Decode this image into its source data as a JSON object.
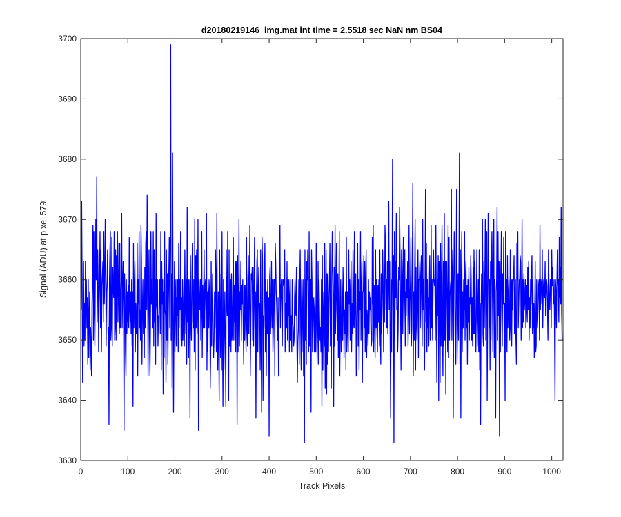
{
  "chart_data": {
    "type": "line",
    "title": "d20180219146_img.mat int time = 2.5518 sec  NaN nm BS04",
    "xlabel": "Track Pixels",
    "ylabel": "Signal (ADU) at pixel 579",
    "xlim": [
      0,
      1024
    ],
    "ylim": [
      3630,
      3700
    ],
    "x_ticks": [
      0,
      100,
      200,
      300,
      400,
      500,
      600,
      700,
      800,
      900,
      1000
    ],
    "y_ticks": [
      3630,
      3640,
      3650,
      3660,
      3670,
      3680,
      3690,
      3700
    ],
    "x_tick_labels": [
      "0",
      "100",
      "200",
      "300",
      "400",
      "500",
      "600",
      "700",
      "800",
      "900",
      "1000"
    ],
    "y_tick_labels": [
      "3630",
      "3640",
      "3650",
      "3660",
      "3670",
      "3680",
      "3690",
      "3700"
    ],
    "grid": false,
    "legend": "none",
    "series": [
      {
        "color": "#0000ff",
        "x_start": 1,
        "x_step": 1,
        "values": [
          3655,
          3673,
          3660,
          3643,
          3651,
          3663,
          3649,
          3656,
          3650,
          3663,
          3655,
          3660,
          3652,
          3657,
          3646,
          3660,
          3647,
          3654,
          3658,
          3645,
          3652,
          3649,
          3644,
          3656,
          3660,
          3669,
          3650,
          3668,
          3655,
          3649,
          3660,
          3670,
          3660,
          3677,
          3653,
          3665,
          3660,
          3648,
          3656,
          3660,
          3668,
          3652,
          3665,
          3648,
          3659,
          3661,
          3663,
          3653,
          3668,
          3656,
          3660,
          3670,
          3662,
          3649,
          3658,
          3660,
          3665,
          3651,
          3652,
          3636,
          3660,
          3665,
          3668,
          3650,
          3652,
          3667,
          3649,
          3662,
          3659,
          3657,
          3668,
          3650,
          3652,
          3665,
          3650,
          3664,
          3657,
          3668,
          3653,
          3658,
          3666,
          3651,
          3666,
          3652,
          3657,
          3660,
          3671,
          3652,
          3659,
          3663,
          3654,
          3635,
          3661,
          3657,
          3648,
          3644,
          3660,
          3651,
          3658,
          3653,
          3659,
          3652,
          3667,
          3655,
          3653,
          3658,
          3651,
          3660,
          3649,
          3658,
          3639,
          3666,
          3652,
          3658,
          3663,
          3648,
          3656,
          3651,
          3653,
          3666,
          3644,
          3660,
          3656,
          3668,
          3652,
          3655,
          3650,
          3669,
          3663,
          3646,
          3655,
          3660,
          3651,
          3656,
          3647,
          3662,
          3652,
          3666,
          3668,
          3655,
          3674,
          3660,
          3644,
          3658,
          3665,
          3650,
          3644,
          3652,
          3668,
          3656,
          3660,
          3653,
          3652,
          3668,
          3649,
          3665,
          3653,
          3660,
          3646,
          3671,
          3656,
          3655,
          3660,
          3649,
          3654,
          3652,
          3659,
          3660,
          3651,
          3668,
          3645,
          3663,
          3656,
          3660,
          3641,
          3658,
          3647,
          3668,
          3655,
          3654,
          3643,
          3665,
          3650,
          3661,
          3646,
          3655,
          3661,
          3667,
          3652,
          3669,
          3699,
          3650,
          3661,
          3642,
          3681,
          3657,
          3638,
          3652,
          3663,
          3648,
          3656,
          3660,
          3649,
          3657,
          3654,
          3660,
          3648,
          3666,
          3652,
          3660,
          3655,
          3668,
          3650,
          3657,
          3649,
          3660,
          3650,
          3654,
          3660,
          3649,
          3665,
          3656,
          3651,
          3660,
          3646,
          3672,
          3653,
          3660,
          3647,
          3660,
          3655,
          3637,
          3664,
          3653,
          3650,
          3660,
          3666,
          3653,
          3652,
          3660,
          3648,
          3670,
          3645,
          3664,
          3652,
          3665,
          3651,
          3656,
          3670,
          3635,
          3660,
          3656,
          3655,
          3660,
          3650,
          3655,
          3668,
          3647,
          3659,
          3652,
          3657,
          3665,
          3652,
          3659,
          3660,
          3655,
          3671,
          3645,
          3658,
          3648,
          3660,
          3652,
          3658,
          3660,
          3642,
          3648,
          3663,
          3649,
          3655,
          3661,
          3650,
          3647,
          3650,
          3658,
          3652,
          3665,
          3660,
          3648,
          3671,
          3652,
          3645,
          3658,
          3650,
          3640,
          3665,
          3654,
          3647,
          3661,
          3645,
          3668,
          3650,
          3639,
          3660,
          3645,
          3651,
          3658,
          3649,
          3639,
          3665,
          3656,
          3654,
          3668,
          3650,
          3640,
          3665,
          3649,
          3655,
          3660,
          3648,
          3661,
          3650,
          3652,
          3660,
          3667,
          3650,
          3659,
          3653,
          3663,
          3648,
          3663,
          3660,
          3636,
          3664,
          3648,
          3655,
          3670,
          3649,
          3658,
          3655,
          3663,
          3650,
          3659,
          3656,
          3660,
          3652,
          3646,
          3659,
          3650,
          3659,
          3655,
          3648,
          3667,
          3652,
          3649,
          3660,
          3664,
          3651,
          3658,
          3669,
          3644,
          3651,
          3661,
          3660,
          3662,
          3650,
          3662,
          3649,
          3657,
          3667,
          3652,
          3658,
          3637,
          3657,
          3663,
          3665,
          3648,
          3658,
          3662,
          3653,
          3656,
          3645,
          3665,
          3649,
          3638,
          3667,
          3663,
          3640,
          3654,
          3652,
          3660,
          3666,
          3648,
          3660,
          3644,
          3658,
          3651,
          3660,
          3649,
          3657,
          3634,
          3660,
          3662,
          3651,
          3655,
          3663,
          3652,
          3660,
          3648,
          3652,
          3660,
          3660,
          3644,
          3666,
          3663,
          3658,
          3656,
          3652,
          3650,
          3657,
          3644,
          3653,
          3660,
          3669,
          3652,
          3658,
          3660,
          3656,
          3649,
          3660,
          3660,
          3659,
          3660,
          3665,
          3648,
          3656,
          3652,
          3652,
          3663,
          3650,
          3660,
          3654,
          3660,
          3648,
          3657,
          3660,
          3650,
          3654,
          3648,
          3660,
          3653,
          3652,
          3649,
          3650,
          3657,
          3660,
          3655,
          3654,
          3662,
          3649,
          3643,
          3650,
          3652,
          3660,
          3646,
          3660,
          3665,
          3652,
          3645,
          3660,
          3648,
          3655,
          3660,
          3644,
          3650,
          3633,
          3665,
          3650,
          3660,
          3646,
          3663,
          3660,
          3665,
          3652,
          3648,
          3668,
          3649,
          3653,
          3660,
          3638,
          3665,
          3660,
          3648,
          3652,
          3657,
          3655,
          3648,
          3657,
          3650,
          3648,
          3666,
          3654,
          3646,
          3652,
          3663,
          3646,
          3660,
          3654,
          3650,
          3652,
          3648,
          3660,
          3639,
          3664,
          3645,
          3654,
          3658,
          3649,
          3666,
          3642,
          3654,
          3665,
          3641,
          3661,
          3646,
          3661,
          3648,
          3656,
          3660,
          3666,
          3649,
          3657,
          3642,
          3660,
          3668,
          3662,
          3657,
          3639,
          3662,
          3649,
          3669,
          3651,
          3657,
          3666,
          3655,
          3650,
          3661,
          3647,
          3656,
          3668,
          3644,
          3652,
          3660,
          3648,
          3649,
          3662,
          3650,
          3657,
          3662,
          3647,
          3655,
          3651,
          3658,
          3645,
          3667,
          3648,
          3658,
          3652,
          3648,
          3665,
          3656,
          3660,
          3650,
          3658,
          3663,
          3648,
          3656,
          3651,
          3665,
          3654,
          3652,
          3668,
          3652,
          3657,
          3661,
          3644,
          3650,
          3657,
          3666,
          3649,
          3660,
          3645,
          3658,
          3655,
          3668,
          3650,
          3658,
          3663,
          3643,
          3658,
          3658,
          3664,
          3652,
          3663,
          3648,
          3660,
          3665,
          3647,
          3655,
          3653,
          3649,
          3660,
          3651,
          3658,
          3655,
          3657,
          3652,
          3649,
          3650,
          3667,
          3656,
          3669,
          3648,
          3659,
          3655,
          3647,
          3665,
          3652,
          3660,
          3651,
          3648,
          3659,
          3653,
          3660,
          3649,
          3665,
          3652,
          3646,
          3661,
          3651,
          3656,
          3665,
          3660,
          3648,
          3657,
          3653,
          3669,
          3666,
          3655,
          3660,
          3652,
          3663,
          3651,
          3659,
          3673,
          3655,
          3663,
          3649,
          3637,
          3660,
          3648,
          3660,
          3680,
          3655,
          3664,
          3633,
          3668,
          3650,
          3663,
          3657,
          3671,
          3655,
          3660,
          3648,
          3652,
          3662,
          3660,
          3672,
          3664,
          3655,
          3645,
          3665,
          3663,
          3651,
          3660,
          3667,
          3651,
          3660,
          3665,
          3649,
          3658,
          3654,
          3660,
          3657,
          3663,
          3649,
          3655,
          3669,
          3651,
          3656,
          3660,
          3667,
          3649,
          3652,
          3663,
          3676,
          3644,
          3658,
          3650,
          3661,
          3670,
          3645,
          3662,
          3653,
          3650,
          3657,
          3665,
          3647,
          3660,
          3660,
          3663,
          3652,
          3660,
          3664,
          3655,
          3649,
          3670,
          3655,
          3660,
          3648,
          3645,
          3658,
          3675,
          3653,
          3666,
          3648,
          3660,
          3652,
          3657,
          3649,
          3658,
          3664,
          3650,
          3656,
          3669,
          3652,
          3660,
          3650,
          3658,
          3665,
          3660,
          3659,
          3660,
          3650,
          3669,
          3656,
          3643,
          3660,
          3654,
          3664,
          3640,
          3663,
          3657,
          3643,
          3666,
          3649,
          3659,
          3669,
          3653,
          3644,
          3663,
          3649,
          3671,
          3650,
          3663,
          3641,
          3660,
          3663,
          3655,
          3648,
          3669,
          3647,
          3667,
          3650,
          3657,
          3659,
          3660,
          3675,
          3650,
          3660,
          3665,
          3637,
          3659,
          3668,
          3663,
          3649,
          3646,
          3660,
          3675,
          3646,
          3653,
          3661,
          3650,
          3662,
          3681,
          3646,
          3665,
          3637,
          3660,
          3668,
          3648,
          3658,
          3652,
          3660,
          3655,
          3668,
          3650,
          3660,
          3663,
          3652,
          3659,
          3646,
          3660,
          3653,
          3662,
          3650,
          3657,
          3656,
          3664,
          3660,
          3650,
          3657,
          3649,
          3662,
          3651,
          3665,
          3651,
          3663,
          3650,
          3648,
          3657,
          3665,
          3649,
          3655,
          3660,
          3648,
          3665,
          3645,
          3656,
          3636,
          3655,
          3661,
          3656,
          3670,
          3651,
          3649,
          3663,
          3652,
          3660,
          3670,
          3650,
          3658,
          3668,
          3640,
          3655,
          3671,
          3663,
          3652,
          3660,
          3645,
          3663,
          3650,
          3662,
          3668,
          3659,
          3648,
          3662,
          3670,
          3647,
          3660,
          3650,
          3637,
          3658,
          3660,
          3672,
          3650,
          3668,
          3654,
          3663,
          3634,
          3663,
          3648,
          3660,
          3668,
          3655,
          3649,
          3661,
          3656,
          3667,
          3650,
          3656,
          3640,
          3668,
          3655,
          3660,
          3648,
          3664,
          3652,
          3657,
          3660,
          3650,
          3652,
          3665,
          3650,
          3660,
          3649,
          3660,
          3655,
          3660,
          3660,
          3664,
          3651,
          3658,
          3660,
          3650,
          3646,
          3666,
          3660,
          3668,
          3652,
          3656,
          3660,
          3660,
          3664,
          3663,
          3650,
          3655,
          3670,
          3652,
          3660,
          3653,
          3661,
          3655,
          3657,
          3660,
          3652,
          3655,
          3659,
          3653,
          3662,
          3655,
          3663,
          3650,
          3657,
          3652,
          3660,
          3656,
          3660,
          3664,
          3651,
          3660,
          3652,
          3656,
          3647,
          3655,
          3663,
          3648,
          3649,
          3660,
          3654,
          3652,
          3656,
          3659,
          3660,
          3650,
          3669,
          3655,
          3660,
          3659,
          3656,
          3665,
          3652,
          3658,
          3660,
          3657,
          3657,
          3663,
          3654,
          3657,
          3660,
          3659,
          3655,
          3650,
          3665,
          3660,
          3656,
          3655,
          3660,
          3660,
          3652,
          3665,
          3659,
          3662,
          3657,
          3656,
          3660,
          3651,
          3640,
          3660,
          3658,
          3652,
          3660,
          3665,
          3659,
          3660,
          3653,
          3667,
          3657,
          3662,
          3656,
          3672,
          3655,
          3650,
          3650,
          3650,
          3650
        ]
      }
    ]
  }
}
